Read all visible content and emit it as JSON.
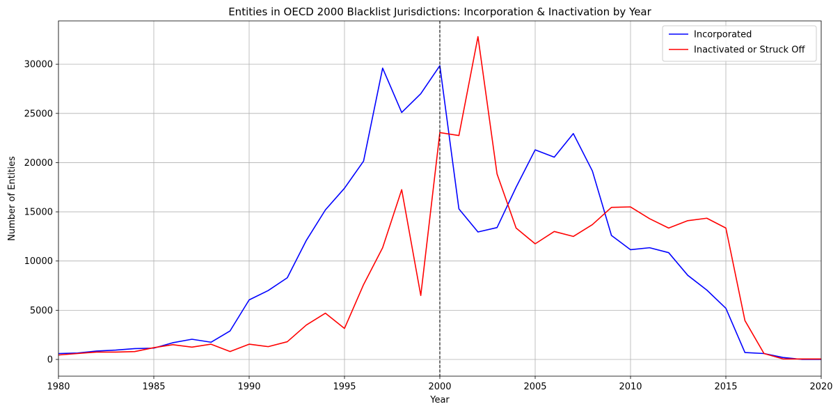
{
  "chart_data": {
    "type": "line",
    "title": "Entities in OECD 2000 Blacklist Jurisdictions: Incorporation & Inactivation by Year",
    "xlabel": "Year",
    "ylabel": "Number of Entities",
    "xlim": [
      1980,
      2020
    ],
    "ylim": [
      -1700,
      34400
    ],
    "xticks": [
      1980,
      1985,
      1990,
      1995,
      2000,
      2005,
      2010,
      2015,
      2020
    ],
    "yticks": [
      0,
      5000,
      10000,
      15000,
      20000,
      25000,
      30000
    ],
    "grid": true,
    "legend_position": "top-right",
    "reference_line": {
      "x": 2000,
      "style": "dashed",
      "color": "#000000"
    },
    "x": [
      1980,
      1981,
      1982,
      1983,
      1984,
      1985,
      1986,
      1987,
      1988,
      1989,
      1990,
      1991,
      1992,
      1993,
      1994,
      1995,
      1996,
      1997,
      1998,
      1999,
      2000,
      2001,
      2002,
      2003,
      2004,
      2005,
      2006,
      2007,
      2008,
      2009,
      2010,
      2011,
      2012,
      2013,
      2014,
      2015,
      2016,
      2017,
      2018,
      2019,
      2020
    ],
    "series": [
      {
        "name": "Incorporated",
        "color": "#0000ff",
        "values": [
          600,
          650,
          850,
          950,
          1100,
          1150,
          1700,
          2050,
          1750,
          2900,
          6050,
          7000,
          8300,
          12100,
          15200,
          17400,
          20150,
          29600,
          25100,
          27000,
          29850,
          15300,
          12950,
          13400,
          17500,
          21300,
          20550,
          22950,
          19150,
          12600,
          11150,
          11350,
          10850,
          8550,
          7050,
          5200,
          700,
          600,
          200,
          0,
          0
        ]
      },
      {
        "name": "Inactivated or Struck Off",
        "color": "#ff0000",
        "values": [
          450,
          600,
          750,
          750,
          800,
          1200,
          1500,
          1250,
          1550,
          800,
          1550,
          1300,
          1800,
          3500,
          4700,
          3150,
          7600,
          11350,
          17250,
          6500,
          23050,
          22750,
          32800,
          18850,
          13350,
          11750,
          13000,
          12500,
          13700,
          15450,
          15500,
          14300,
          13350,
          14100,
          14350,
          13350,
          3950,
          600,
          50,
          50,
          50
        ]
      }
    ]
  }
}
